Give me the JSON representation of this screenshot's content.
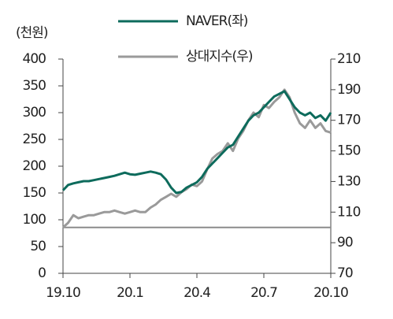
{
  "chart_data": {
    "type": "line",
    "y_label": "(천원)",
    "categories": [
      "19.10",
      null,
      null,
      null,
      null,
      null,
      null,
      null,
      null,
      null,
      null,
      null,
      null,
      "20.1",
      null,
      null,
      null,
      null,
      null,
      null,
      null,
      null,
      null,
      null,
      null,
      null,
      "20.4",
      null,
      null,
      null,
      null,
      null,
      null,
      null,
      null,
      null,
      null,
      null,
      null,
      "20.7",
      null,
      null,
      null,
      null,
      null,
      null,
      null,
      null,
      null,
      null,
      null,
      null,
      "20.10"
    ],
    "series": [
      {
        "name": "NAVER(좌)",
        "color": "#0d6b5c",
        "axis": "y",
        "values": [
          155,
          165,
          168,
          170,
          172,
          172,
          174,
          176,
          178,
          180,
          182,
          185,
          188,
          185,
          184,
          186,
          188,
          190,
          188,
          185,
          175,
          160,
          150,
          152,
          160,
          165,
          170,
          180,
          195,
          205,
          215,
          225,
          235,
          240,
          255,
          270,
          285,
          295,
          300,
          310,
          320,
          330,
          335,
          340,
          325,
          310,
          300,
          295,
          300,
          290,
          295,
          285,
          300
        ]
      },
      {
        "name": "상대지수(우)",
        "color": "#9a9a9a",
        "axis": "y2",
        "values": [
          100,
          103,
          108,
          106,
          107,
          108,
          108,
          109,
          110,
          110,
          111,
          110,
          109,
          110,
          111,
          110,
          110,
          113,
          115,
          118,
          120,
          122,
          120,
          123,
          125,
          128,
          127,
          130,
          138,
          145,
          148,
          150,
          155,
          150,
          158,
          163,
          170,
          175,
          172,
          180,
          178,
          182,
          185,
          190,
          185,
          175,
          168,
          165,
          170,
          165,
          168,
          163,
          162
        ]
      }
    ],
    "ylim": [
      0,
      400
    ],
    "yticks": [
      0,
      50,
      100,
      150,
      200,
      250,
      300,
      350,
      400
    ],
    "y2lim": [
      70,
      210
    ],
    "y2ticks": [
      70,
      90,
      110,
      130,
      150,
      170,
      190,
      210
    ],
    "y2_reference": 100,
    "reference_color": "#8c8c8c"
  }
}
